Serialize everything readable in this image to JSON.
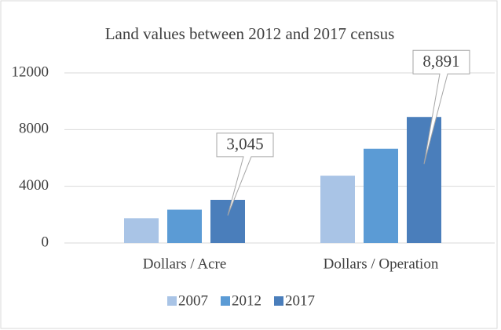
{
  "chart_data": {
    "type": "bar",
    "title": "Land values between 2012 and 2017 census",
    "categories": [
      "Dollars / Acre",
      "Dollars / Operation"
    ],
    "series": [
      {
        "name": "2007",
        "color": "#a9c4e6",
        "values": [
          1750,
          4750
        ]
      },
      {
        "name": "2012",
        "color": "#5b9bd5",
        "values": [
          2350,
          6650
        ]
      },
      {
        "name": "2017",
        "color": "#4a7ebb",
        "values": [
          3045,
          8891
        ],
        "value_labels": [
          "3,045",
          "8,891"
        ]
      }
    ],
    "ylim": [
      0,
      12000
    ],
    "yticks": [
      0,
      4000,
      8000,
      12000
    ],
    "grid": true,
    "legend": "bottom"
  }
}
